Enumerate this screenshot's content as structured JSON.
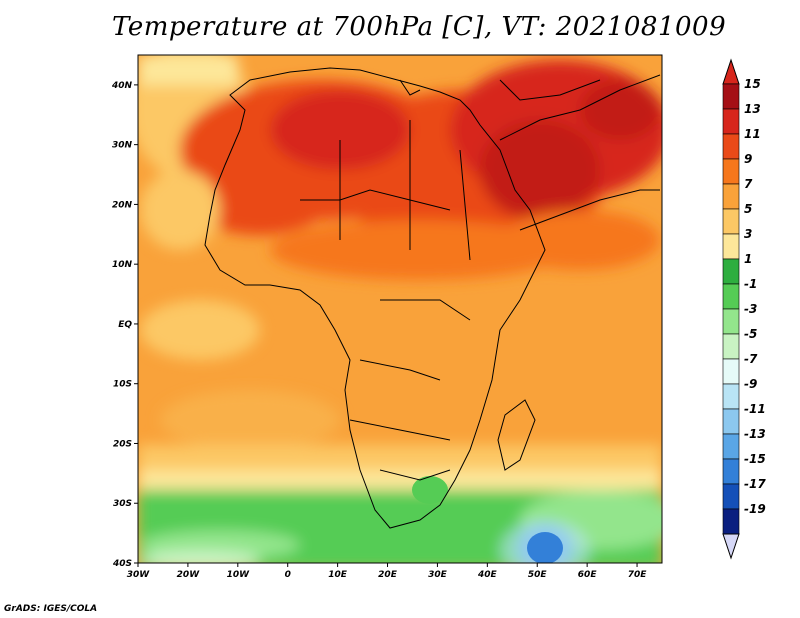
{
  "title": "Temperature at 700hPa [C], VT: 2021081009",
  "footer": "GrADS: IGES/COLA",
  "map": {
    "lon_labels": [
      "30W",
      "20W",
      "10W",
      "0",
      "10E",
      "20E",
      "30E",
      "40E",
      "50E",
      "60E",
      "70E"
    ],
    "lat_labels": [
      "40N",
      "30N",
      "20N",
      "10N",
      "EQ",
      "10S",
      "20S",
      "30S",
      "40S"
    ],
    "lon_range": [
      -30,
      75
    ],
    "lat_range": [
      -40,
      45
    ]
  },
  "colorbar": {
    "labels": [
      "15",
      "13",
      "11",
      "9",
      "7",
      "5",
      "3",
      "1",
      "-1",
      "-3",
      "-5",
      "-7",
      "-9",
      "-11",
      "-13",
      "-15",
      "-17",
      "-19"
    ],
    "colors": [
      "#a50f15",
      "#d7261c",
      "#ea4a18",
      "#f6771c",
      "#f9a23a",
      "#fcc865",
      "#fde79a",
      "#2eae3f",
      "#55cc55",
      "#93e58c",
      "#c9f3c3",
      "#e6fbf8",
      "#b9e4f5",
      "#8cc8ef",
      "#5aa6e6",
      "#3380d8",
      "#1450b8",
      "#0a1f80"
    ],
    "over_color": "#d7261c",
    "under_color": "#d6d8f7"
  }
}
